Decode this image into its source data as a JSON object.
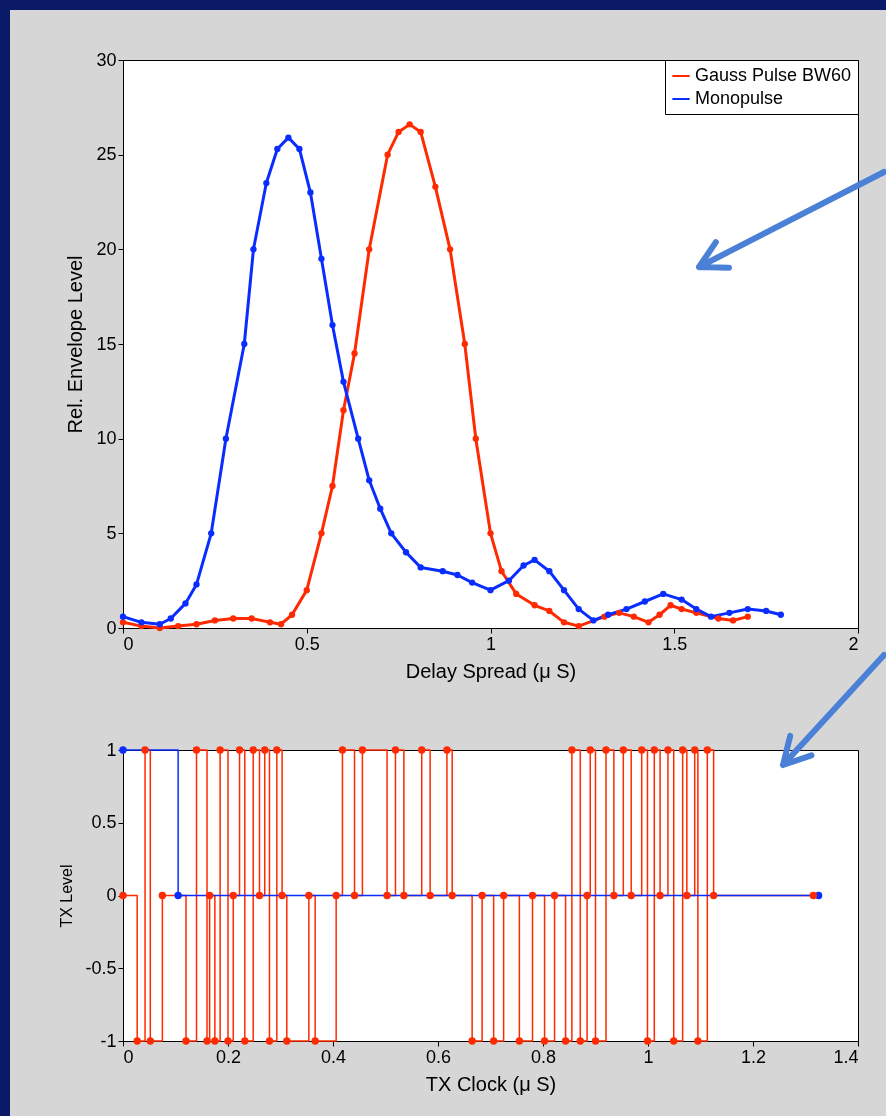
{
  "chart_data": [
    {
      "type": "line",
      "xlabel": "Delay Spread (μ S)",
      "ylabel": "Rel. Envelope Level",
      "xlim": [
        0,
        2
      ],
      "xticks": [
        0,
        0.5,
        1,
        1.5,
        2
      ],
      "ylim": [
        0,
        30
      ],
      "yticks": [
        0,
        5,
        10,
        15,
        20,
        25,
        30
      ],
      "legend": "top right",
      "marker": "circle",
      "series": [
        {
          "name": "Gauss Pulse BW60",
          "color": "#ff2a00",
          "x": [
            0,
            0.05,
            0.1,
            0.15,
            0.2,
            0.25,
            0.3,
            0.35,
            0.4,
            0.43,
            0.46,
            0.5,
            0.54,
            0.57,
            0.6,
            0.63,
            0.67,
            0.72,
            0.75,
            0.78,
            0.81,
            0.85,
            0.89,
            0.93,
            0.96,
            1.0,
            1.03,
            1.07,
            1.12,
            1.16,
            1.2,
            1.24,
            1.31,
            1.35,
            1.39,
            1.43,
            1.46,
            1.49,
            1.52,
            1.56,
            1.62,
            1.66,
            1.7
          ],
          "values": [
            0.3,
            0.1,
            0,
            0.1,
            0.2,
            0.4,
            0.5,
            0.5,
            0.3,
            0.2,
            0.7,
            2,
            5,
            7.5,
            11.5,
            14.5,
            20,
            25,
            26.2,
            26.6,
            26.2,
            23.3,
            20,
            15,
            10,
            5,
            3,
            1.8,
            1.2,
            0.9,
            0.3,
            0.1,
            0.6,
            0.8,
            0.6,
            0.3,
            0.7,
            1.2,
            1,
            0.8,
            0.5,
            0.4,
            0.6
          ]
        },
        {
          "name": "Monopulse",
          "color": "#0a2dff",
          "x": [
            0,
            0.05,
            0.1,
            0.13,
            0.17,
            0.2,
            0.24,
            0.28,
            0.33,
            0.355,
            0.39,
            0.42,
            0.45,
            0.48,
            0.51,
            0.54,
            0.57,
            0.6,
            0.64,
            0.67,
            0.7,
            0.73,
            0.77,
            0.81,
            0.87,
            0.91,
            0.95,
            1.0,
            1.05,
            1.09,
            1.12,
            1.16,
            1.2,
            1.24,
            1.28,
            1.32,
            1.37,
            1.42,
            1.47,
            1.52,
            1.56,
            1.6,
            1.65,
            1.7,
            1.75,
            1.79
          ],
          "values": [
            0.6,
            0.3,
            0.2,
            0.5,
            1.3,
            2.3,
            5,
            10,
            15,
            20,
            23.5,
            25.3,
            25.9,
            25.3,
            23,
            19.5,
            16,
            13,
            10,
            7.8,
            6.3,
            5,
            4,
            3.2,
            3,
            2.8,
            2.4,
            2,
            2.5,
            3.3,
            3.6,
            3,
            2,
            1,
            0.4,
            0.7,
            1,
            1.4,
            1.8,
            1.5,
            1,
            0.6,
            0.8,
            1,
            0.9,
            0.7
          ]
        }
      ]
    },
    {
      "type": "step",
      "xlabel": "TX Clock (μ S)",
      "ylabel": "TX Level",
      "xlim": [
        0,
        1.4
      ],
      "xticks": [
        0,
        0.2,
        0.4,
        0.6,
        0.8,
        1,
        1.2,
        1.4
      ],
      "ylim": [
        -1,
        1
      ],
      "yticks": [
        -1,
        -0.5,
        0,
        0.5,
        1
      ],
      "marker": "circle",
      "series": [
        {
          "color": "#ff2a00",
          "x": [
            0,
            0.027,
            0.042,
            0.052,
            0.075,
            0.12,
            0.14,
            0.16,
            0.165,
            0.175,
            0.185,
            0.2,
            0.21,
            0.222,
            0.232,
            0.248,
            0.26,
            0.27,
            0.279,
            0.293,
            0.303,
            0.312,
            0.354,
            0.366,
            0.406,
            0.418,
            0.441,
            0.456,
            0.503,
            0.519,
            0.535,
            0.569,
            0.585,
            0.617,
            0.627,
            0.665,
            0.684,
            0.706,
            0.725,
            0.755,
            0.78,
            0.803,
            0.822,
            0.843,
            0.855,
            0.871,
            0.884,
            0.89,
            0.9,
            0.92,
            0.935,
            0.953,
            0.968,
            0.988,
            0.999,
            1.012,
            1.023,
            1.038,
            1.049,
            1.066,
            1.074,
            1.089,
            1.095,
            1.113,
            1.125,
            1.315
          ],
          "values": [
            0,
            -1,
            1,
            -1,
            0,
            -1,
            1,
            -1,
            0,
            -1,
            1,
            -1,
            0,
            1,
            -1,
            1,
            0,
            1,
            -1,
            1,
            0,
            -1,
            0,
            -1,
            0,
            1,
            0,
            1,
            0,
            1,
            0,
            1,
            0,
            1,
            0,
            -1,
            0,
            -1,
            0,
            -1,
            0,
            -1,
            0,
            -1,
            1,
            -1,
            0,
            1,
            -1,
            1,
            0,
            1,
            0,
            1,
            -1,
            1,
            0,
            1,
            -1,
            1,
            0,
            1,
            -1,
            1,
            0,
            0
          ]
        },
        {
          "color": "#0a2dff",
          "x": [
            0,
            0.105,
            1.325
          ],
          "values": [
            1,
            0,
            0
          ]
        }
      ]
    }
  ]
}
